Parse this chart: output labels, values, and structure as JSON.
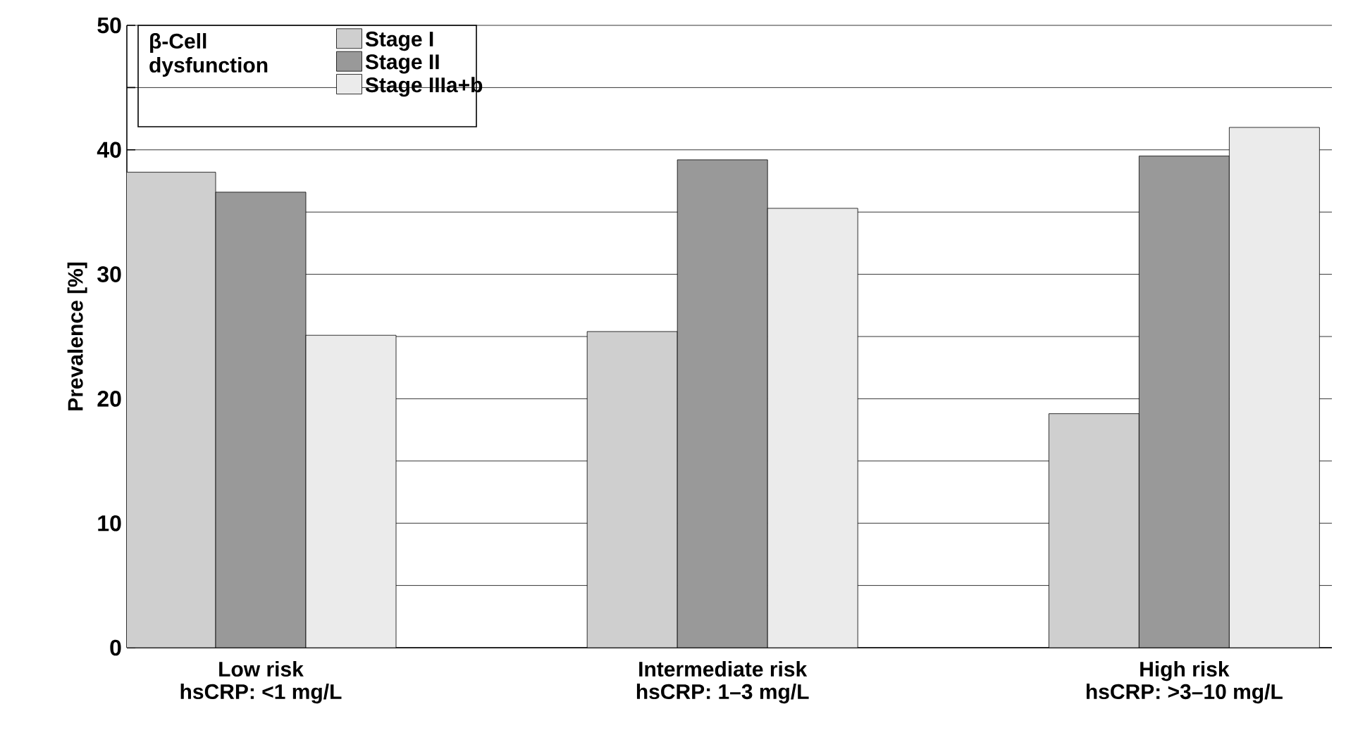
{
  "chart_data": {
    "type": "bar",
    "ylabel": "Prevalence [%]",
    "legend_title": "β-Cell dysfunction",
    "categories": [
      "Low risk\nhsCRP: <1 mg/L",
      "Intermediate risk\nhsCRP: 1–3 mg/L",
      "High risk\nhsCRP: >3–10 mg/L"
    ],
    "series": [
      {
        "name": "Stage I",
        "color": "#cfcfcf",
        "values": [
          38.2,
          25.4,
          18.8
        ]
      },
      {
        "name": "Stage II",
        "color": "#999999",
        "values": [
          36.6,
          39.2,
          39.5
        ]
      },
      {
        "name": "Stage IIIa+b",
        "color": "#ebebeb",
        "values": [
          25.1,
          35.3,
          41.8
        ]
      }
    ],
    "ylim": [
      0,
      50
    ],
    "yticks": [
      0,
      {
        "value": 5,
        "label": null
      },
      10,
      {
        "value": 15,
        "label": null
      },
      20,
      {
        "value": 25,
        "label": null
      },
      30,
      {
        "value": 35,
        "label": null
      },
      40,
      {
        "value": 45,
        "label": null
      },
      50
    ],
    "grid": "y",
    "legend": "top left"
  }
}
